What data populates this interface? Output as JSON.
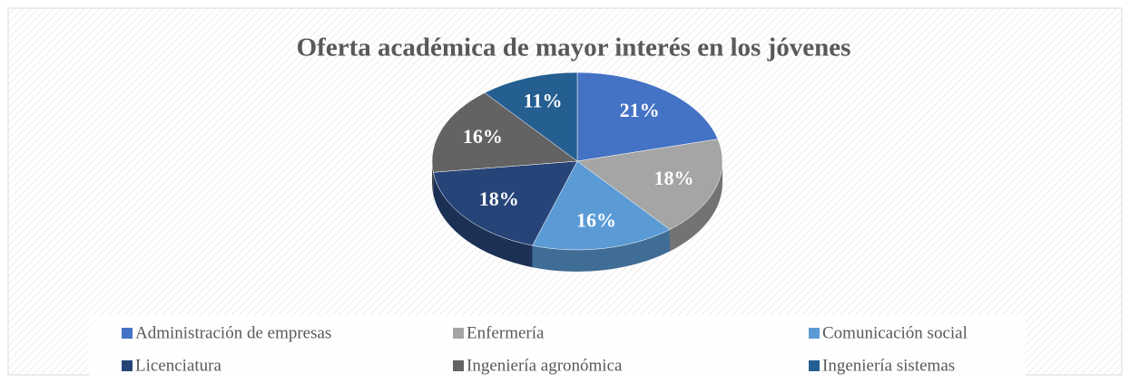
{
  "chart_data": {
    "type": "pie",
    "title": "Oferta académica de mayor interés en los jóvenes",
    "categories": [
      "Administración de empresas",
      "Enfermería",
      "Comunicación social",
      "Licenciatura",
      "Ingeniería agronómica",
      "Ingeniería sistemas"
    ],
    "values": [
      21,
      18,
      16,
      18,
      16,
      11
    ],
    "value_labels": [
      "21%",
      "18%",
      "16%",
      "18%",
      "16%",
      "11%"
    ],
    "colors": [
      "#4472c4",
      "#a5a5a5",
      "#5b9bd5",
      "#264478",
      "#636363",
      "#255e91"
    ],
    "legend": "bottom"
  }
}
